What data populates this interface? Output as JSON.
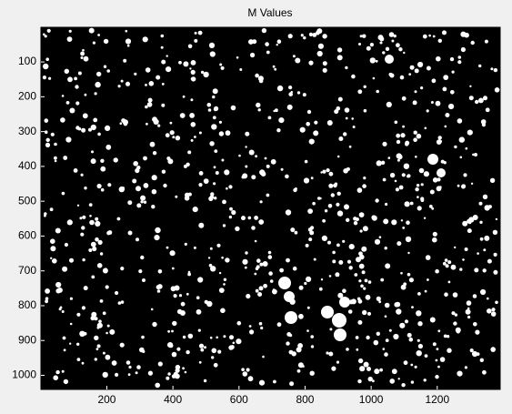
{
  "chart_data": {
    "type": "image",
    "title": "M Values",
    "xlim": [
      0.5,
      1390.5
    ],
    "xticks": [
      200,
      400,
      600,
      800,
      1000,
      1200
    ],
    "ylim": [
      0.5,
      1040.5
    ],
    "yticks": [
      100,
      200,
      300,
      400,
      500,
      600,
      700,
      800,
      900,
      1000
    ],
    "y_reversed": true,
    "background": "#000000",
    "foreground": "#ffffff"
  }
}
